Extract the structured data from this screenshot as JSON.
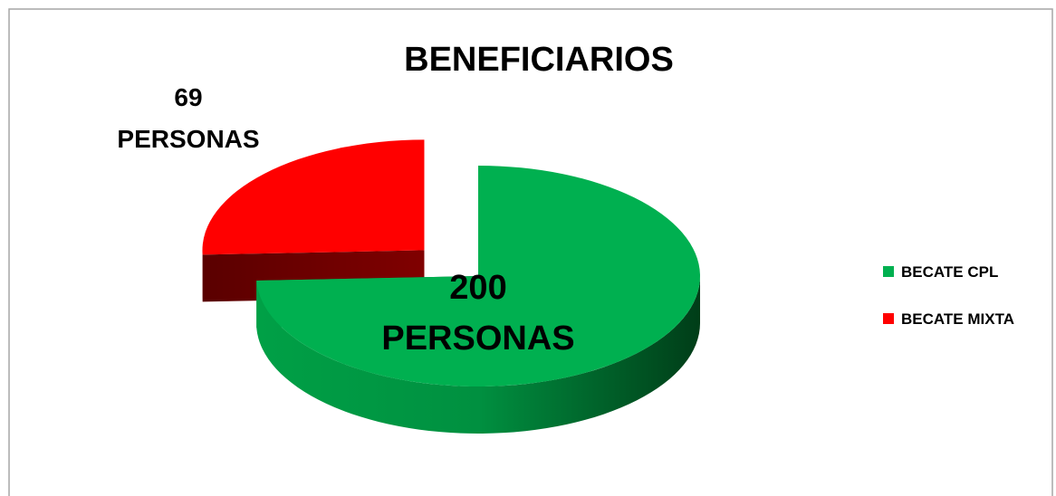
{
  "chart_data": {
    "type": "pie",
    "title": "BENEFICIARIOS",
    "categories": [
      "BECATE CPL",
      "BECATE MIXTA"
    ],
    "values": [
      200,
      69
    ],
    "value_labels": [
      "200 PERSONAS",
      "69 PERSONAS"
    ],
    "colors": [
      "#00b050",
      "#ff0000"
    ],
    "exploded": [
      false,
      true
    ],
    "legend": "right"
  }
}
